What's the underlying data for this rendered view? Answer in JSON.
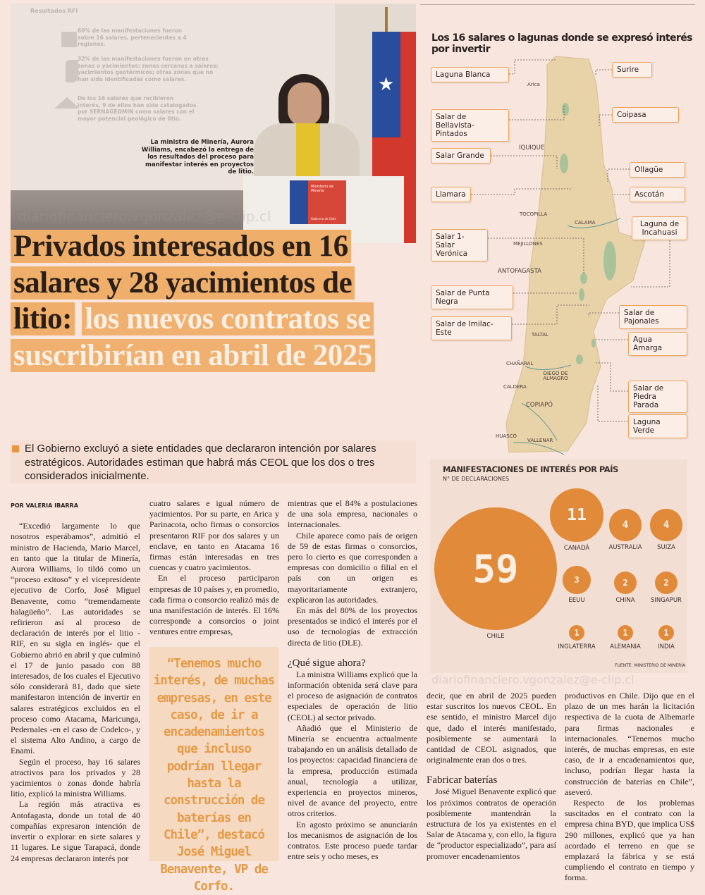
{
  "photo": {
    "slide_title": "Resultados RFI",
    "slide_points": [
      "60% de las manifestaciones fueron sobre 16 salares, pertenecientes a 4 regiones.",
      "32% de las manifestaciones fueron en otras zonas o yacimientos: zonas cercanas a salares; yacimientos geotérmicos; otras zonas que no han sido identificadas como salares.",
      "De los 16 salares que recibieron interés, 9 de ellos han sido catalogados por SERNAGEOMIN como salares con el mayor potencial geológico de litio."
    ],
    "podium_text": "Ministerio de Minería",
    "podium_footer": "Gobierno de Chile",
    "caption": "La ministra de Minería, Aurora Williams, encabezó la entrega de los resultados del proceso para manifestar interés en proyectos de litio.",
    "watermark": "diariofinanciero.vgonzalez@e-clip.cl"
  },
  "headline": {
    "dark": "Privados interesados en 16 salares y 28 yacimientos de litio:",
    "light": "los nuevos contratos se suscribirían en abril de 2025"
  },
  "lead": "El Gobierno excluyó a siete entidades que declararon intención por salares estratégicos. Autoridades estiman que habrá más CEOL que los dos o tres considerados inicialmente.",
  "byline": "POR VALERIA IBARRA",
  "columns": {
    "c1": [
      "“Excedió largamente lo que nosotros esperábamos”, admitió el ministro de Hacienda, Mario Marcel, en tanto que la titular de Minería, Aurora Williams, lo tildó como un “proceso exitoso” y el vicepresidente ejecutivo de Corfo, José Miguel Benavente, como “tremendamente halagüeño”. Las autoridades se refirieron así al proceso de declaración de interés por el litio -RIF, en su sigla en inglés- que el Gobierno abrió en abril y que culminó el 17 de junio pasado con 88 interesados, de los cuales el Ejecutivo sólo considerará 81, dado que siete manifestaron intención de invertir en salares estratégicos excluidos en el proceso como Atacama, Maricunga, Pedernales -en el caso de Codelco-, y el sistema Alto Andino, a cargo de Enami.",
      "Según el proceso, hay 16 salares atractivos para los privados y 28 yacimientos o zonas donde habría litio, explicó la ministra Williams.",
      "La región más atractiva es Antofagasta, donde un total de 40 compañías expresaron intención de invertir o explorar en siete salares y 11 lugares. Le sigue Tarapacá, donde 24 empresas declararon interés por"
    ],
    "c2": [
      "cuatro salares e igual número de yacimientos. Por su parte, en Arica y Parinacota, ocho firmas o consorcios presentaron RIF por dos salares y un enclave, en tanto en Atacama 16 firmas están interesadas en tres cuencas y cuatro yacimientos.",
      "En el proceso participaron empresas de 10 países y, en promedio, cada firma o consorcio realizó más de una manifestación de interés. El 16% corresponde a consorcios o joint ventures entre empresas,"
    ],
    "pull_quote": "“Tenemos mucho interés, de muchas empresas, en este caso, de ir a encadenamientos que incluso podrían llegar hasta la construcción de baterías en Chile”, destacó José Miguel Benavente, VP de Corfo.",
    "c3": [
      "mientras que el 84% a postulaciones de una sola empresa, nacionales o internacionales.",
      "Chile aparece como país de origen de 59 de estas firmas o consorcios, pero lo cierto es que corresponden a empresas con domicilio o filial en el país con un origen es mayoritariamente extranjero, explicaron las autoridades.",
      "En más del 80% de los proyectos presentados se indicó el interés por el uso de tecnologías de extracción directa de litio (DLE)."
    ],
    "c3_heading": "¿Qué sigue ahora?",
    "c3b": [
      "La ministra Williams explicó que la información obtenida será clave para el proceso de asignación de contratos especiales de operación de litio (CEOL) al sector privado.",
      "Añadió que el Ministerio de Minería se encuentra actualmente trabajando en un análisis detallado de los proyectos: capacidad financiera de la empresa, producción estimada anual, tecnología a utilizar, experiencia en proyectos mineros, nivel de avance del proyecto, entre otros criterios.",
      "En agosto próximo se anunciarán los mecanismos de asignación de los contratos. Este proceso puede tardar entre seis y ocho meses, es"
    ],
    "c4": [
      "decir, que en abril de 2025 pueden estar suscritos los nuevos CEOL. En ese sentido, el ministro Marcel dijo que, dado el interés manifestado, posiblemente se aumentará la cantidad de CEOL asignados, que originalmente eran dos o tres."
    ],
    "c4_heading": "Fabricar baterías",
    "c4b": [
      "José Miguel Benavente explicó que los próximos contratos de operación posiblemente mantendrán la estructura de los ya existentes en el Salar de Atacama y, con ello, la figura de “productor especializado”, para así promover encadenamientos"
    ],
    "c5": [
      "productivos en Chile. Dijo que en el plazo de un mes harán la licitación respectiva de la cuota de Albemarle para firmas nacionales e internacionales. “Tenemos mucho interés, de muchas empresas, en este caso, de ir a encadenamientos que, incluso, podrían llegar hasta la construcción de baterías en Chile”, aseveró.",
      "Respecto de los problemas suscitados en el contrato con la empresa china BYD, que implica US$ 290 millones, explicó que ya han acordado el terreno en que se emplazará la fábrica y se está cumpliendo el contrato en tiempo y forma."
    ]
  },
  "map": {
    "title": "Los 16 salares o lagunas donde se expresó interés por invertir",
    "salares": [
      "Laguna Blanca",
      "Salar de Bellavista-Pintados",
      "Salar Grande",
      "Llamara",
      "Salar 1- Salar Verónica",
      "Salar de Punta Negra",
      "Salar de Imilac-Este",
      "Surire",
      "Coipasa",
      "Ollagüe",
      "Ascotán",
      "Laguna de Incahuasi",
      "Salar de Pajonales",
      "Agua Amarga",
      "Salar de Piedra Parada",
      "Laguna Verde"
    ],
    "cities": [
      "Arica",
      "IQUIQUE",
      "TOCOPILLA",
      "CALAMA",
      "MEJILLONES",
      "ANTOFAGASTA",
      "TALTAL",
      "CHAÑARAL",
      "DIEGO DE ALMAGRO",
      "CALDERA",
      "COPIAPÓ",
      "HUASCO",
      "VALLENAR"
    ],
    "colors": {
      "land": "#e8d2a8",
      "salar": "#a9c29a",
      "label_border": "#eea35a"
    }
  },
  "chart_data": {
    "type": "bubble",
    "title": "MANIFESTACIONES DE INTERÉS POR PAÍS",
    "subtitle": "N° DE DECLARACIONES",
    "source": "FUENTE: MINISTERIO DE MINERÍA",
    "categories": [
      "CHILE",
      "CANADÁ",
      "AUSTRALIA",
      "SUIZA",
      "EEUU",
      "CHINA",
      "SINGAPUR",
      "INGLATERRA",
      "ALEMANIA",
      "INDIA"
    ],
    "values": [
      59,
      11,
      4,
      4,
      3,
      2,
      2,
      1,
      1,
      1
    ],
    "color": "#e08a3a"
  }
}
